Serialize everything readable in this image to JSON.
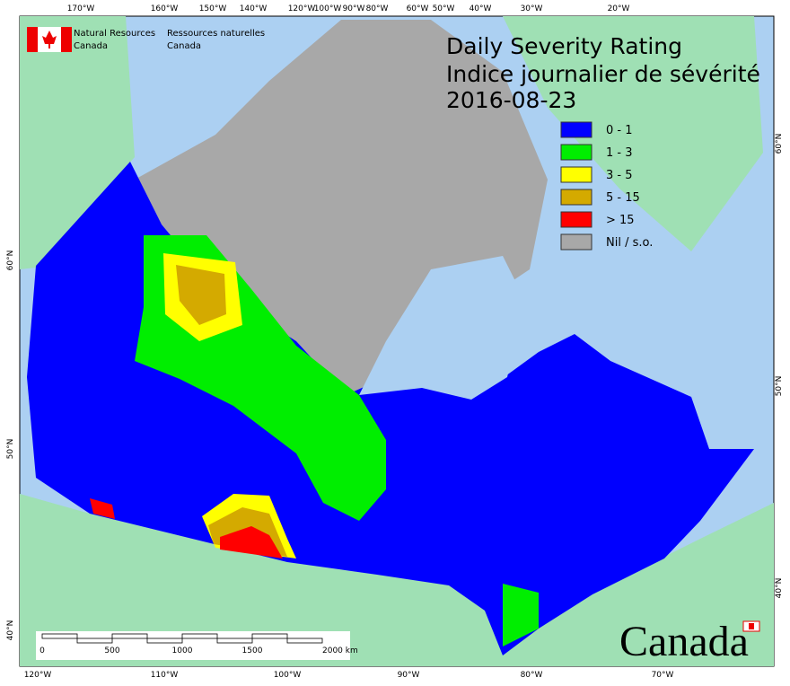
{
  "header": {
    "en_line1": "Natural Resources",
    "en_line2": "Canada",
    "fr_line1": "Ressources naturelles",
    "fr_line2": "Canada"
  },
  "title": {
    "en": "Daily Severity Rating",
    "fr": "Indice journalier de sévérité",
    "date": "2016-08-23"
  },
  "legend": [
    {
      "label": "0 - 1",
      "color": "#0000ff"
    },
    {
      "label": "1 - 3",
      "color": "#00ee00"
    },
    {
      "label": "3 - 5",
      "color": "#ffff00"
    },
    {
      "label": "5 - 15",
      "color": "#d4aa00"
    },
    {
      "label": "> 15",
      "color": "#ff0000"
    },
    {
      "label": "Nil / s.o.",
      "color": "#a8a8a8"
    }
  ],
  "graticule": {
    "top": [
      "170°W",
      "160°W",
      "150°W",
      "140°W",
      "120°W",
      "100°W",
      "90°W",
      "80°W",
      "60°W",
      "50°W",
      "40°W",
      "30°W",
      "20°W"
    ],
    "bottom": [
      "120°W",
      "110°W",
      "100°W",
      "90°W",
      "80°W",
      "70°W"
    ],
    "left": [
      "60°N",
      "50°N",
      "40°N"
    ],
    "right": [
      "60°N",
      "50°N",
      "40°N"
    ]
  },
  "scale_bar": [
    "0",
    "500",
    "1000",
    "1500",
    "2000 km"
  ],
  "wordmark": "Canada"
}
